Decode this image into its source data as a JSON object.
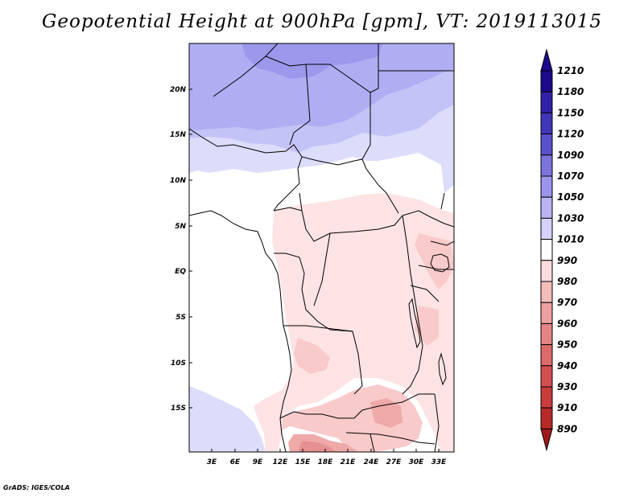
{
  "title": "Geopotential Height at 900hPa [gpm], VT: 2019113015",
  "credit": "GrADS: IGES/COLA",
  "map": {
    "lat_labels": [
      "20N",
      "15N",
      "10N",
      "5N",
      "EQ",
      "5S",
      "10S",
      "15S"
    ],
    "lon_labels": [
      "3E",
      "6E",
      "9E",
      "12E",
      "15E",
      "18E",
      "21E",
      "24E",
      "27E",
      "30E",
      "33E"
    ]
  },
  "legend": {
    "levels": [
      "1210",
      "1180",
      "1150",
      "1120",
      "1090",
      "1070",
      "1050",
      "1030",
      "1010",
      "990",
      "980",
      "970",
      "960",
      "950",
      "940",
      "930",
      "910",
      "890"
    ],
    "colors": [
      "#1a0a8c",
      "#2f22a8",
      "#3f36b8",
      "#5a52cc",
      "#7a74dc",
      "#9a94ea",
      "#b8b4f2",
      "#d4d2f8",
      "#ffffff",
      "#fbdcdc",
      "#f5bcbc",
      "#eea0a0",
      "#e48484",
      "#dc6a6a",
      "#d45050",
      "#c83c3c",
      "#b82a2a",
      "#a01a1a"
    ]
  }
}
